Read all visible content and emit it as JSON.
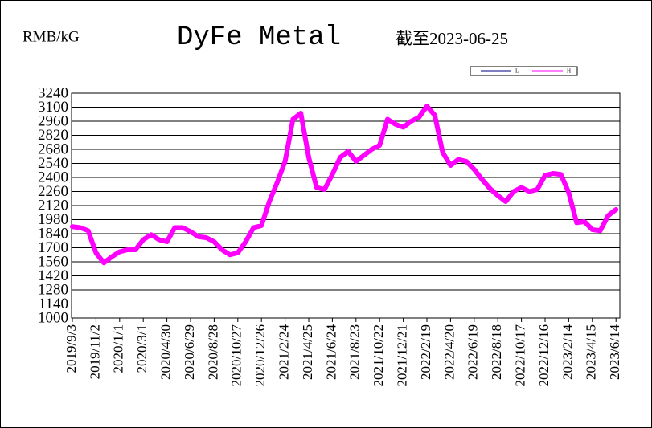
{
  "chart_data": {
    "type": "line",
    "title": "DyFe Metal",
    "y_label": "RMB/kG",
    "subtitle": "截至2023-06-25",
    "categories": [
      "2019/9/3",
      null,
      null,
      "2019/11/2",
      null,
      null,
      "2020/1/1",
      null,
      null,
      "2020/3/1",
      null,
      null,
      "2020/4/30",
      null,
      null,
      "2020/6/29",
      null,
      null,
      "2020/8/28",
      null,
      null,
      "2020/10/27",
      null,
      null,
      "2020/12/26",
      null,
      null,
      "2021/2/24",
      null,
      null,
      "2021/4/25",
      null,
      null,
      "2021/6/24",
      null,
      null,
      "2021/8/23",
      null,
      null,
      "2021/10/22",
      null,
      null,
      "2021/12/21",
      null,
      null,
      "2022/2/19",
      null,
      null,
      "2022/4/20",
      null,
      null,
      "2022/6/19",
      null,
      null,
      "2022/8/18",
      null,
      null,
      "2022/10/17",
      null,
      null,
      "2022/12/16",
      null,
      null,
      "2023/2/14",
      null,
      null,
      "2023/4/15",
      null,
      null,
      "2023/6/14"
    ],
    "series": [
      {
        "name": "L",
        "color": "#000080",
        "values": [
          1910,
          1900,
          1870,
          1650,
          1550,
          1610,
          1660,
          1680,
          1680,
          1780,
          1830,
          1780,
          1760,
          1900,
          1900,
          1860,
          1810,
          1800,
          1760,
          1680,
          1630,
          1650,
          1760,
          1900,
          1920,
          2160,
          2350,
          2560,
          2980,
          3040,
          2600,
          2300,
          2280,
          2430,
          2600,
          2660,
          2560,
          2620,
          2680,
          2720,
          2980,
          2930,
          2900,
          2960,
          3000,
          3110,
          3020,
          2650,
          2520,
          2580,
          2560,
          2480,
          2380,
          2290,
          2220,
          2160,
          2260,
          2300,
          2260,
          2280,
          2420,
          2440,
          2430,
          2250,
          1950,
          1960,
          1880,
          1870,
          2020,
          2080
        ]
      },
      {
        "name": "H",
        "color": "#ff00ff",
        "values": [
          1910,
          1900,
          1870,
          1650,
          1550,
          1610,
          1660,
          1680,
          1680,
          1780,
          1830,
          1780,
          1760,
          1900,
          1900,
          1860,
          1810,
          1800,
          1760,
          1680,
          1630,
          1650,
          1760,
          1900,
          1920,
          2160,
          2350,
          2560,
          2980,
          3040,
          2600,
          2300,
          2280,
          2430,
          2600,
          2660,
          2560,
          2620,
          2680,
          2720,
          2980,
          2930,
          2900,
          2960,
          3000,
          3110,
          3020,
          2650,
          2520,
          2580,
          2560,
          2480,
          2380,
          2290,
          2220,
          2160,
          2260,
          2300,
          2260,
          2280,
          2420,
          2440,
          2430,
          2250,
          1950,
          1960,
          1880,
          1870,
          2020,
          2080
        ]
      }
    ],
    "ylim": [
      1000,
      3240
    ],
    "yticks": [
      1000,
      1140,
      1280,
      1420,
      1560,
      1700,
      1840,
      1980,
      2120,
      2260,
      2400,
      2540,
      2680,
      2820,
      2960,
      3100,
      3240
    ],
    "grid": true,
    "legend": "top-right"
  }
}
